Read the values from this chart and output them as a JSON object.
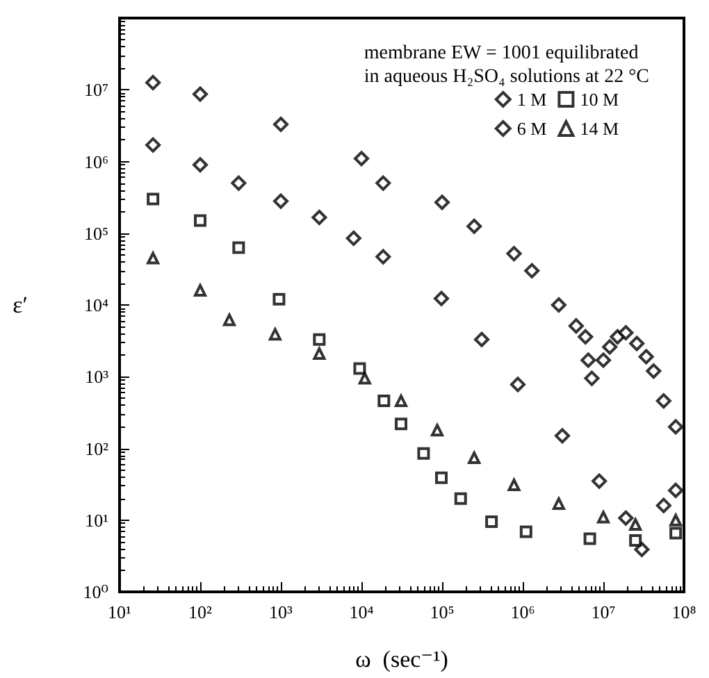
{
  "chart_data": {
    "type": "scatter",
    "xlabel": "ω  (sec⁻¹)",
    "ylabel": "ε′",
    "legend_title": "membrane EW = 1001 equilibrated\nin aqueous H₂SO₄ solutions at 22 °C",
    "legend": "top right",
    "grid": false,
    "log": "xy",
    "xlim": [
      10,
      100000000
    ],
    "ylim": [
      1,
      100000000
    ],
    "xticks": [
      {
        "value": 10,
        "label": "10¹"
      },
      {
        "value": 100,
        "label": "10²"
      },
      {
        "value": 1000,
        "label": "10³"
      },
      {
        "value": 10000,
        "label": "10⁴"
      },
      {
        "value": 100000,
        "label": "10⁵"
      },
      {
        "value": 1000000,
        "label": "10⁶"
      },
      {
        "value": 10000000,
        "label": "10⁷"
      },
      {
        "value": 100000000,
        "label": "10⁸"
      }
    ],
    "yticks": [
      {
        "value": 1,
        "label": "10⁰"
      },
      {
        "value": 10,
        "label": "10¹"
      },
      {
        "value": 100,
        "label": "10²"
      },
      {
        "value": 1000,
        "label": "10³"
      },
      {
        "value": 10000,
        "label": "10⁴"
      },
      {
        "value": 100000,
        "label": "10⁵"
      },
      {
        "value": 1000000,
        "label": "10⁶"
      },
      {
        "value": 10000000,
        "label": "10⁷"
      }
    ],
    "series": [
      {
        "name": "1 M",
        "color": "#000000",
        "marker": "diamond",
        "x": [
          26,
          100,
          1000,
          10000,
          18600,
          100000,
          250000,
          780000,
          1300000,
          2800000,
          4600000,
          6000000,
          6500000,
          7200000,
          10000000,
          12000000,
          15000000,
          19000000,
          26000000,
          34000000,
          42000000,
          56000000,
          79000000
        ],
        "values": [
          12600000,
          8700000,
          3300000,
          1100000,
          500000,
          270000,
          125000,
          52000,
          30000,
          10000,
          5100,
          3600,
          1700,
          950,
          1700,
          2600,
          3600,
          4100,
          2900,
          1900,
          1200,
          460,
          200
        ]
      },
      {
        "name": "6 M",
        "color": "#000000",
        "marker": "diamond",
        "x": [
          26,
          100,
          300,
          1000,
          3000,
          8000,
          18600,
          98000,
          310000,
          870000,
          3100000,
          8900000,
          19000000,
          30000000,
          56000000,
          79000000
        ],
        "values": [
          1700000,
          900000,
          500000,
          280000,
          166000,
          85000,
          47000,
          12300,
          3300,
          780,
          150,
          35,
          10.7,
          3.9,
          16,
          26
        ]
      },
      {
        "name": "10 M",
        "color": "#000000",
        "marker": "square",
        "x": [
          26,
          100,
          300,
          950,
          3000,
          9500,
          19000,
          31000,
          59000,
          98000,
          170000,
          410000,
          1100000,
          6800000,
          25000000,
          79000000
        ],
        "values": [
          300000,
          150000,
          63000,
          12000,
          3300,
          1300,
          460,
          220,
          85,
          39,
          20,
          9.5,
          6.9,
          5.5,
          5.2,
          6.6
        ]
      },
      {
        "name": "14 M",
        "color": "#000000",
        "marker": "triangle",
        "x": [
          26,
          100,
          230,
          850,
          3000,
          11000,
          31000,
          87000,
          250000,
          780000,
          2800000,
          10000000,
          25000000,
          79000000
        ],
        "values": [
          45000,
          16000,
          6200,
          3900,
          2100,
          950,
          460,
          180,
          74,
          31,
          17,
          11,
          8.7,
          10
        ]
      }
    ]
  }
}
